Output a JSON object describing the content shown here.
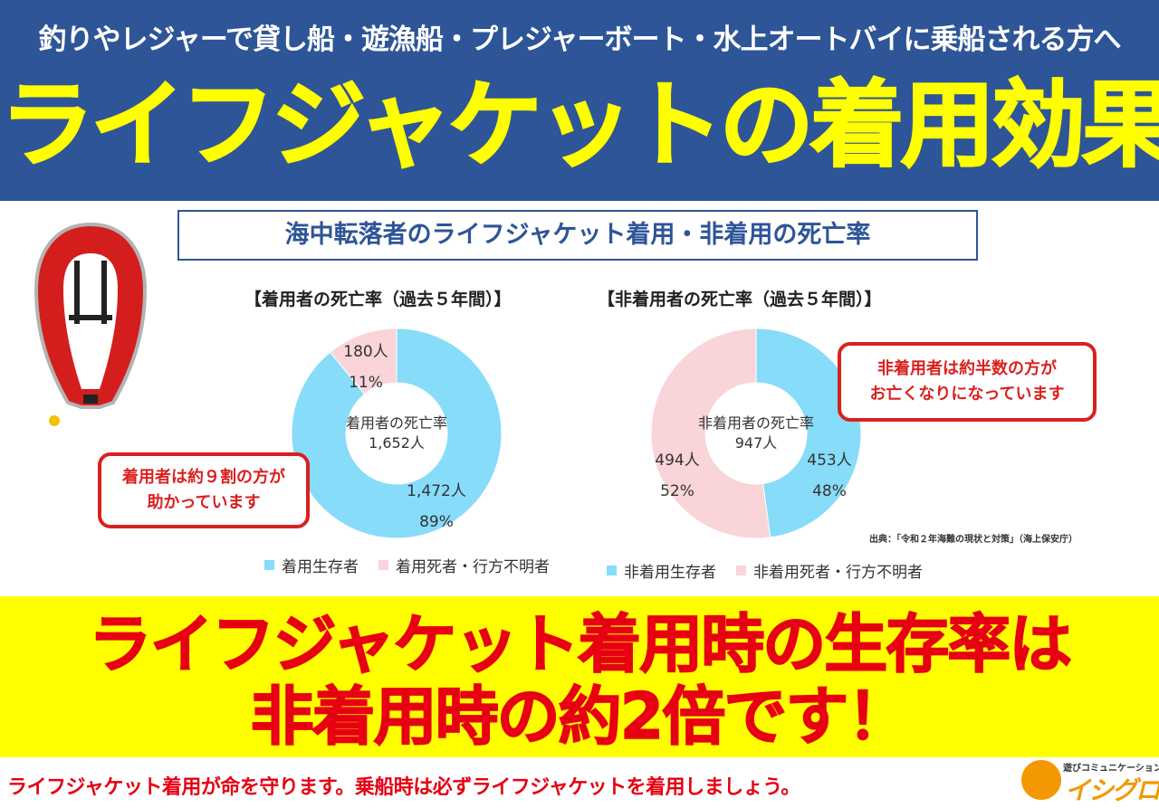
{
  "header": {
    "subtitle": "釣りやレジャーで貸し船・遊漁船・プレジャーボート・水上オートバイに乗船される方へ",
    "title": "ライフジャケットの着用効果"
  },
  "section_title": "海中転落者のライフジャケット着用・非着用の死亡率",
  "callouts": {
    "wearing": [
      "着用者は約９割の方が",
      "助かっています"
    ],
    "not_wearing": [
      "非着用者は約半数の方が",
      "お亡くなりになっています"
    ]
  },
  "source": "出典：「令和２年海難の現状と対策」（海上保安庁）",
  "conclusion": {
    "line1": "ライフジャケット着用時の生存率は",
    "line2": "非着用時の約2倍です！"
  },
  "footer": "ライフジャケット着用が命を守ります。乗船時は必ずライフジャケットを着用しましょう。",
  "logo": {
    "tagline": "遊びコミュニケーション",
    "name": "イシグロ"
  },
  "colors": {
    "banner_blue": "#2e5597",
    "title_yellow": "#ffff00",
    "survivor_blue": "#87dcf9",
    "death_pink": "#f9d4d8",
    "alert_red": "#e60012"
  },
  "chart_data": [
    {
      "type": "pie",
      "title": "【着用者の死亡率（過去５年間）】",
      "center_label": [
        "着用者の死亡率",
        "1,652人"
      ],
      "total": 1652,
      "slices": [
        {
          "name": "着用生存者",
          "count_label": "1,472人",
          "percent_label": "89%",
          "value": 1472,
          "percent": 89,
          "color": "#87dcf9"
        },
        {
          "name": "着用死者・行方不明者",
          "count_label": "180人",
          "percent_label": "11%",
          "value": 180,
          "percent": 11,
          "color": "#f9d4d8"
        }
      ],
      "legend": [
        "着用生存者",
        "着用死者・行方不明者"
      ]
    },
    {
      "type": "pie",
      "title": "【非着用者の死亡率（過去５年間）】",
      "center_label": [
        "非着用者の死亡率",
        "947人"
      ],
      "total": 947,
      "slices": [
        {
          "name": "非着用生存者",
          "count_label": "453人",
          "percent_label": "48%",
          "value": 453,
          "percent": 48,
          "color": "#87dcf9"
        },
        {
          "name": "非着用死者・行方不明者",
          "count_label": "494人",
          "percent_label": "52%",
          "value": 494,
          "percent": 52,
          "color": "#f9d4d8"
        }
      ],
      "legend": [
        "非着用生存者",
        "非着用死者・行方不明者"
      ]
    }
  ]
}
